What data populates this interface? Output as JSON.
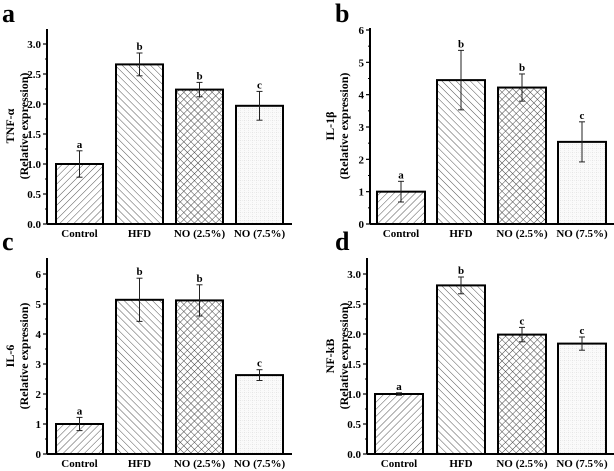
{
  "chart_data": [
    {
      "type": "bar",
      "panel_label": "a",
      "ylabel_line1": "TNF-α",
      "ylabel_line2": "(Relative expression)",
      "categories": [
        "Control",
        "HFD",
        "NO (2.5%)",
        "NO (7.5%)"
      ],
      "values": [
        1.0,
        2.66,
        2.24,
        1.97
      ],
      "errors": [
        0.22,
        0.19,
        0.12,
        0.24
      ],
      "significance": [
        "a",
        "b",
        "b",
        "c"
      ],
      "yticks": [
        "0.0",
        "0.5",
        "1.0",
        "1.5",
        "2.0",
        "2.5",
        "3.0"
      ],
      "ylim": [
        0,
        3.25
      ]
    },
    {
      "type": "bar",
      "panel_label": "b",
      "ylabel_line1": "IL-1β",
      "ylabel_line2": "(Relative expression)",
      "categories": [
        "Control",
        "HFD",
        "NO (2.5%)",
        "NO (7.5%)"
      ],
      "values": [
        1.0,
        4.45,
        4.22,
        2.54
      ],
      "errors": [
        0.32,
        0.92,
        0.42,
        0.62
      ],
      "significance": [
        "a",
        "b",
        "b",
        "c"
      ],
      "yticks": [
        "0",
        "1",
        "2",
        "3",
        "4",
        "5",
        "6"
      ],
      "ylim": [
        0,
        6
      ]
    },
    {
      "type": "bar",
      "panel_label": "c",
      "ylabel_line1": "IL-6",
      "ylabel_line2": "(Relative expression)",
      "categories": [
        "Control",
        "HFD",
        "NO (2.5%)",
        "NO (7.5%)"
      ],
      "values": [
        1.0,
        5.14,
        5.12,
        2.63
      ],
      "errors": [
        0.22,
        0.72,
        0.52,
        0.18
      ],
      "significance": [
        "a",
        "b",
        "b",
        "c"
      ],
      "yticks": [
        "0",
        "1",
        "2",
        "3",
        "4",
        "5",
        "6"
      ],
      "ylim": [
        0,
        6.5
      ]
    },
    {
      "type": "bar",
      "panel_label": "d",
      "ylabel_line1": "NF-kB",
      "ylabel_line2": "(Relative expression)",
      "categories": [
        "Control",
        "HFD",
        "NO (2.5%)",
        "NO (7.5%)"
      ],
      "values": [
        1.0,
        2.81,
        1.99,
        1.84
      ],
      "errors": [
        0.02,
        0.14,
        0.12,
        0.11
      ],
      "significance": [
        "a",
        "b",
        "c",
        "c"
      ],
      "yticks": [
        "0.0",
        "0.5",
        "1.0",
        "1.5",
        "2.0",
        "2.5",
        "3.0"
      ],
      "ylim": [
        0,
        3.25
      ]
    }
  ]
}
